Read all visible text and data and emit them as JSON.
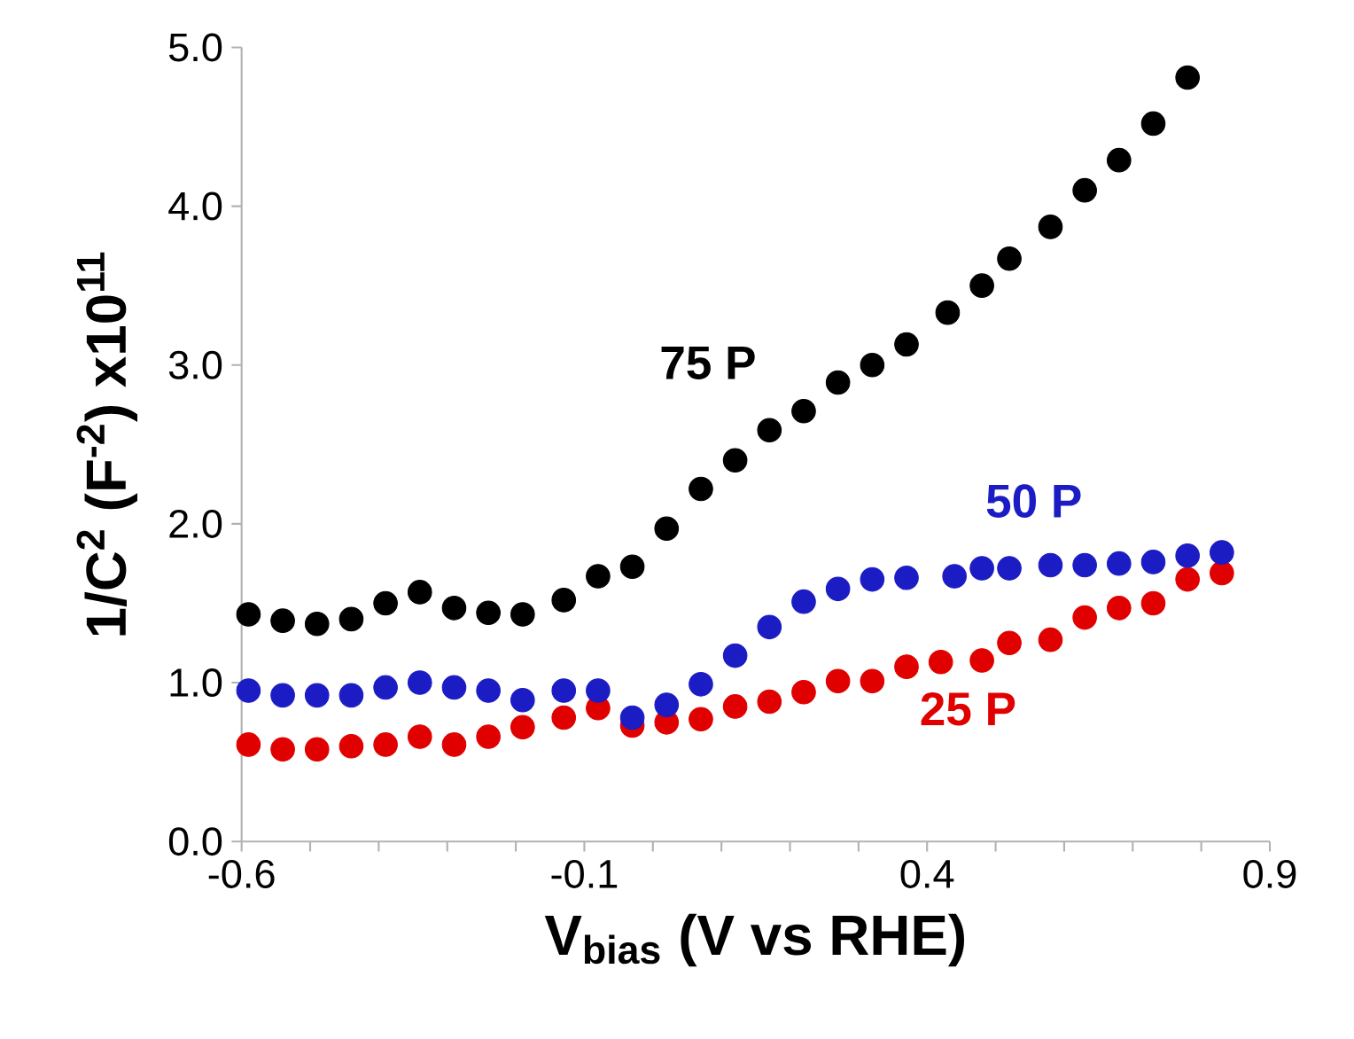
{
  "chart_data": {
    "type": "scatter",
    "xlabel": "V$_{bias}$ (V vs RHE)",
    "ylabel": "1/C$^{2}$ (F$^{-2}$) x10$^{11}$",
    "xlim": [
      -0.6,
      0.9
    ],
    "ylim": [
      0,
      5
    ],
    "xticks": [
      -0.6,
      {
        "value": -0.5,
        "label": null
      },
      {
        "value": -0.4,
        "label": null
      },
      {
        "value": -0.3,
        "label": null
      },
      {
        "value": -0.2,
        "label": null
      },
      -0.1,
      {
        "value": 0.0,
        "label": null
      },
      {
        "value": 0.1,
        "label": null
      },
      {
        "value": 0.2,
        "label": null
      },
      {
        "value": 0.3,
        "label": null
      },
      0.4,
      {
        "value": 0.5,
        "label": null
      },
      {
        "value": 0.6,
        "label": null
      },
      {
        "value": 0.7,
        "label": null
      },
      {
        "value": 0.8,
        "label": null
      },
      0.9
    ],
    "yticks": [
      {
        "value": 0,
        "label": "0.0"
      },
      {
        "value": 1,
        "label": "1.0"
      },
      {
        "value": 2,
        "label": "2.0"
      },
      {
        "value": 3,
        "label": "3.0"
      },
      {
        "value": 4,
        "label": "4.0"
      },
      {
        "value": 5,
        "label": "5.0"
      }
    ],
    "marker": "circle",
    "series": [
      {
        "color": "#000000",
        "x": [
          -0.59,
          -0.54,
          -0.49,
          -0.44,
          -0.39,
          -0.34,
          -0.29,
          -0.24,
          -0.19,
          -0.13,
          -0.08,
          -0.03,
          0.02,
          0.07,
          0.12,
          0.17,
          0.22,
          0.27,
          0.32,
          0.37,
          0.43,
          0.48,
          0.52,
          0.58,
          0.63,
          0.68,
          0.73,
          0.78
        ],
        "values": [
          1.43,
          1.39,
          1.37,
          1.4,
          1.5,
          1.57,
          1.47,
          1.44,
          1.43,
          1.52,
          1.67,
          1.73,
          1.97,
          2.22,
          2.4,
          2.59,
          2.71,
          2.89,
          3.0,
          3.13,
          3.33,
          3.5,
          3.67,
          3.87,
          4.1,
          4.29,
          4.52,
          4.81
        ]
      },
      {
        "color": "#1c1cc4",
        "x": [
          -0.59,
          -0.54,
          -0.49,
          -0.44,
          -0.39,
          -0.34,
          -0.29,
          -0.24,
          -0.19,
          -0.13,
          -0.08,
          -0.03,
          0.02,
          0.07,
          0.12,
          0.17,
          0.22,
          0.27,
          0.32,
          0.37,
          0.44,
          0.48,
          0.52,
          0.58,
          0.63,
          0.68,
          0.73,
          0.78,
          0.83
        ],
        "values": [
          0.95,
          0.92,
          0.92,
          0.92,
          0.97,
          1.0,
          0.97,
          0.95,
          0.89,
          0.95,
          0.95,
          0.78,
          0.86,
          0.99,
          1.17,
          1.35,
          1.51,
          1.59,
          1.65,
          1.66,
          1.67,
          1.72,
          1.72,
          1.74,
          1.74,
          1.75,
          1.76,
          1.8,
          1.82
        ]
      },
      {
        "color": "#e00000",
        "x": [
          -0.59,
          -0.54,
          -0.49,
          -0.44,
          -0.39,
          -0.34,
          -0.29,
          -0.24,
          -0.19,
          -0.13,
          -0.08,
          -0.03,
          0.02,
          0.07,
          0.12,
          0.17,
          0.22,
          0.27,
          0.32,
          0.37,
          0.42,
          0.48,
          0.52,
          0.58,
          0.63,
          0.68,
          0.73,
          0.78,
          0.83
        ],
        "values": [
          0.61,
          0.58,
          0.58,
          0.6,
          0.61,
          0.66,
          0.61,
          0.66,
          0.72,
          0.78,
          0.84,
          0.73,
          0.75,
          0.77,
          0.85,
          0.88,
          0.94,
          1.01,
          1.01,
          1.1,
          1.13,
          1.14,
          1.25,
          1.27,
          1.41,
          1.47,
          1.5,
          1.65,
          1.69
        ]
      }
    ],
    "annotations": [
      "75 P",
      "50 P",
      "25 P"
    ]
  }
}
